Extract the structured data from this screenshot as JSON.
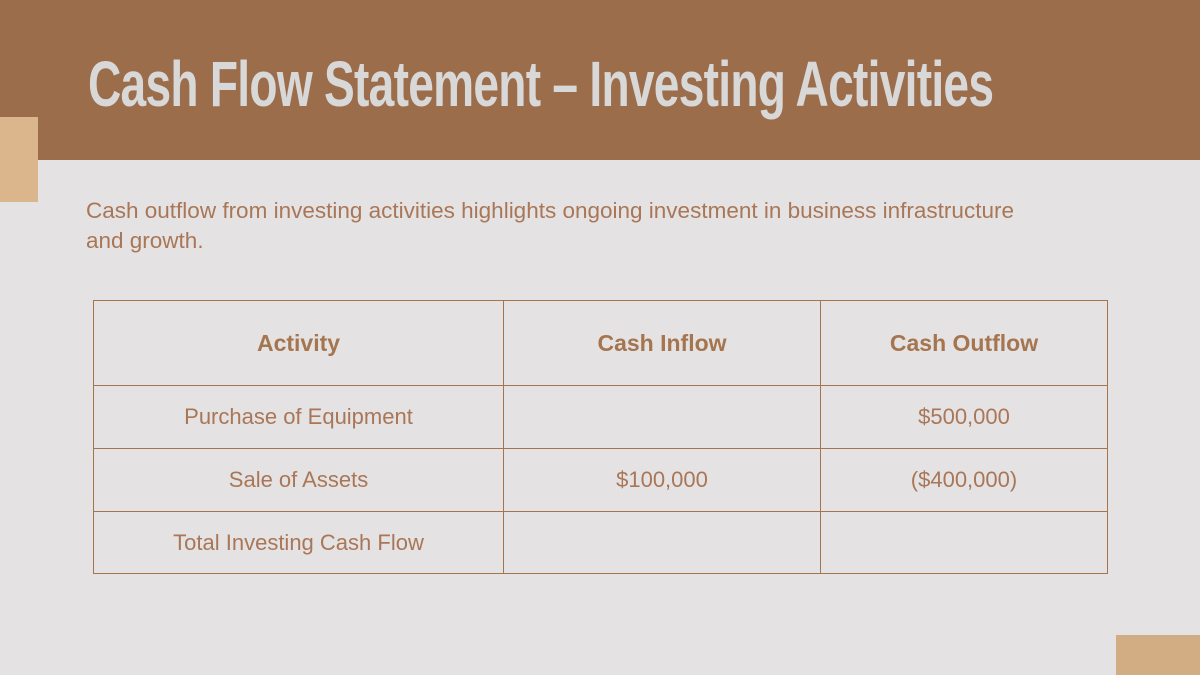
{
  "slide": {
    "title": "Cash Flow Statement – Investing Activities",
    "description": "Cash outflow from investing activities highlights ongoing investment in business infrastructure and growth.",
    "colors": {
      "header_bg": "#9C6D4B",
      "slide_bg": "#E4E2E3",
      "accent_tan_left": "#DBB68C",
      "accent_tan_corner": "#D2AC82",
      "title_text": "#D8D8D8",
      "body_text": "#A97757",
      "table_border": "#A5754F"
    },
    "table": {
      "columns": [
        "Activity",
        "Cash Inflow",
        "Cash Outflow"
      ],
      "rows": [
        {
          "activity": "Purchase of Equipment",
          "inflow": "",
          "outflow": "$500,000"
        },
        {
          "activity": "Sale of Assets",
          "inflow": "$100,000",
          "outflow": "($400,000)"
        },
        {
          "activity": "Total Investing Cash Flow",
          "inflow": "",
          "outflow": ""
        }
      ]
    }
  }
}
